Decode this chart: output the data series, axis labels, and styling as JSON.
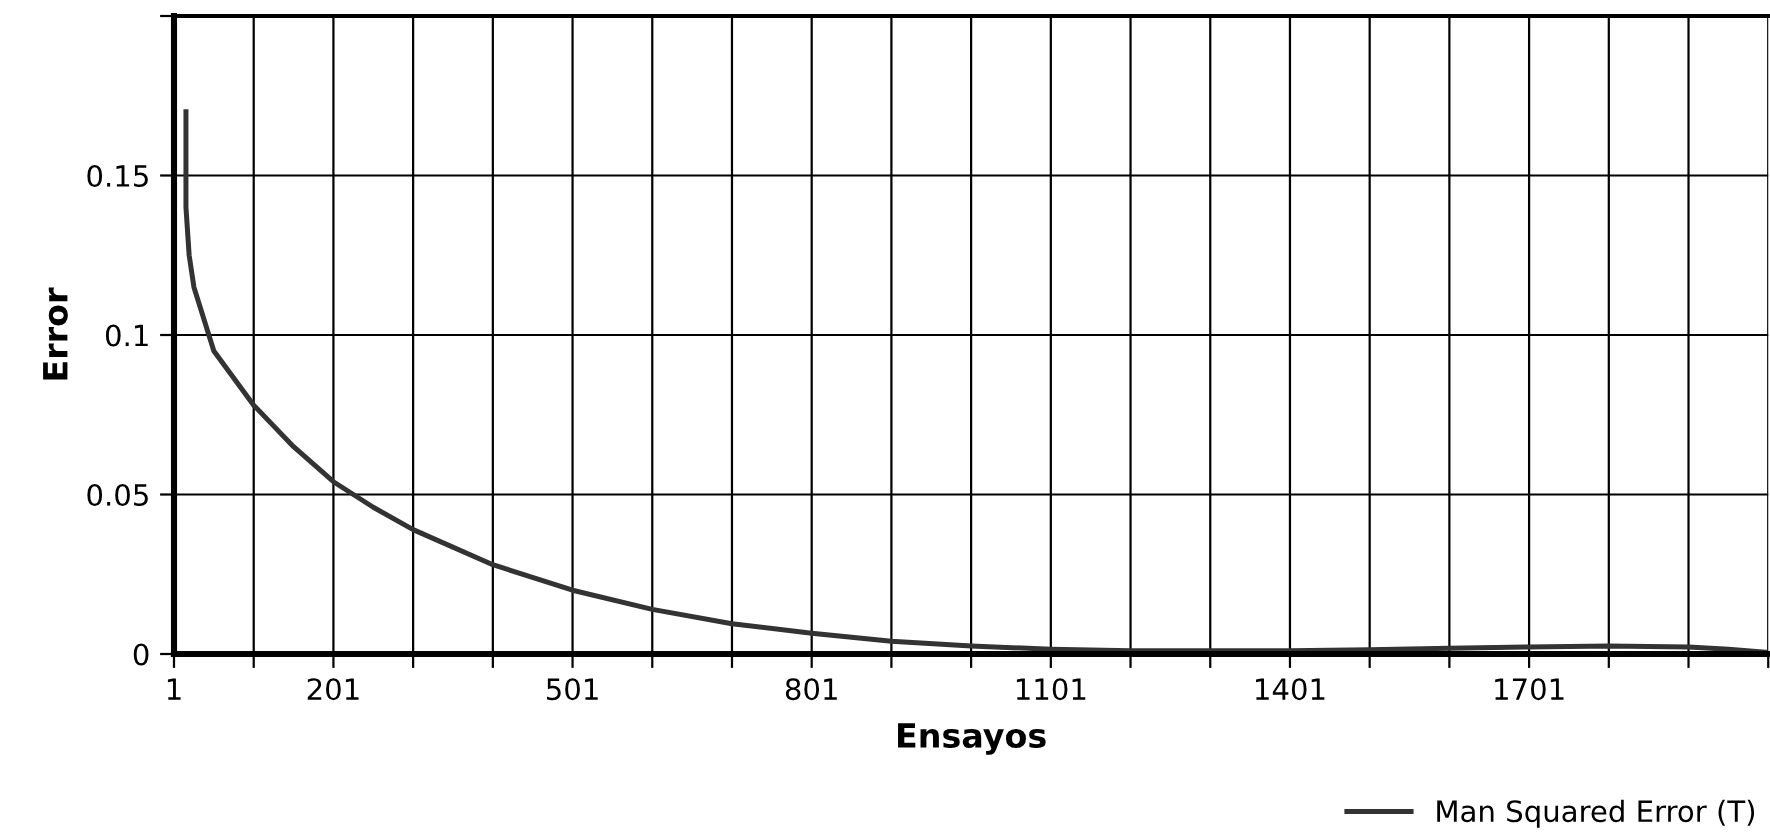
{
  "chart_data": {
    "type": "line",
    "xlabel": "Ensayos",
    "ylabel": "Error",
    "xlim": [
      1,
      2001
    ],
    "xticks": [
      1,
      {
        "value": 101,
        "label": null
      },
      201,
      {
        "value": 301,
        "label": null
      },
      {
        "value": 401,
        "label": null
      },
      501,
      {
        "value": 601,
        "label": null
      },
      {
        "value": 701,
        "label": null
      },
      801,
      {
        "value": 901,
        "label": null
      },
      {
        "value": 1001,
        "label": null
      },
      1101,
      {
        "value": 1201,
        "label": null
      },
      {
        "value": 1301,
        "label": null
      },
      1401,
      {
        "value": 1501,
        "label": null
      },
      {
        "value": 1601,
        "label": null
      },
      1701,
      {
        "value": 1801,
        "label": null
      },
      {
        "value": 1901,
        "label": null
      },
      {
        "value": 2001,
        "label": null
      }
    ],
    "ylim": [
      0,
      0.2
    ],
    "yticks": [
      0,
      0.05,
      0.1,
      0.15,
      {
        "value": 0.2,
        "label": null
      }
    ],
    "grid": true,
    "legend": "bottom right",
    "marker": "none",
    "line_style": "solid",
    "series": [
      {
        "name": "Man Squared Error (T)",
        "color": "#333333",
        "x": [
          16,
          16,
          20,
          26,
          51,
          101,
          151,
          201,
          251,
          301,
          401,
          501,
          601,
          701,
          801,
          901,
          1001,
          1101,
          1201,
          1301,
          1401,
          1501,
          1601,
          1701,
          1801,
          1901,
          1951,
          2001
        ],
        "values": [
          0.17,
          0.14,
          0.125,
          0.115,
          0.095,
          0.078,
          0.065,
          0.054,
          0.046,
          0.039,
          0.028,
          0.02,
          0.014,
          0.0095,
          0.0065,
          0.004,
          0.0025,
          0.0015,
          0.001,
          0.001,
          0.001,
          0.0013,
          0.0018,
          0.0022,
          0.0025,
          0.0022,
          0.0015,
          0.0005
        ]
      }
    ]
  }
}
